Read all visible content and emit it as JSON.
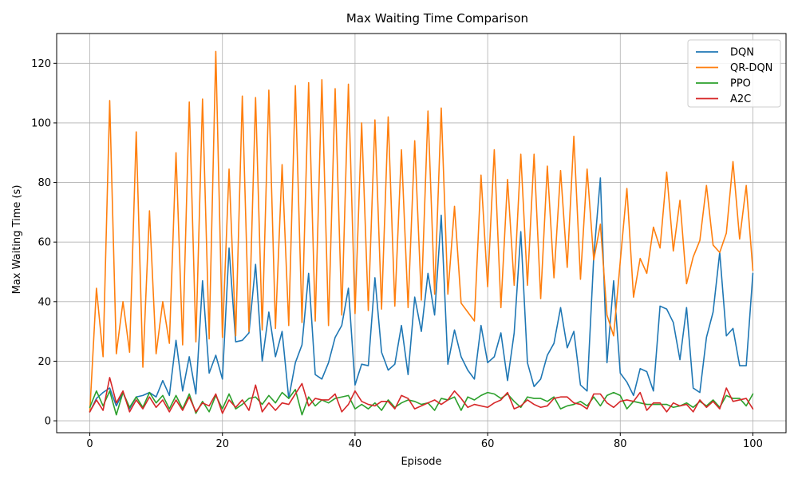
{
  "chart_data": {
    "type": "line",
    "title": "Max Waiting Time Comparison",
    "xlabel": "Episode",
    "ylabel": "Max Waiting Time (s)",
    "xlim": [
      -5,
      105
    ],
    "ylim": [
      -4,
      130
    ],
    "xticks": [
      0,
      20,
      40,
      60,
      80,
      100
    ],
    "yticks": [
      0,
      20,
      40,
      60,
      80,
      100,
      120
    ],
    "grid": true,
    "legend_position": "top-right",
    "x": [
      0,
      1,
      2,
      3,
      4,
      5,
      6,
      7,
      8,
      9,
      10,
      11,
      12,
      13,
      14,
      15,
      16,
      17,
      18,
      19,
      20,
      21,
      22,
      23,
      24,
      25,
      26,
      27,
      28,
      29,
      30,
      31,
      32,
      33,
      34,
      35,
      36,
      37,
      38,
      39,
      40,
      41,
      42,
      43,
      44,
      45,
      46,
      47,
      48,
      49,
      50,
      51,
      52,
      53,
      54,
      55,
      56,
      57,
      58,
      59,
      60,
      61,
      62,
      63,
      64,
      65,
      66,
      67,
      68,
      69,
      70,
      71,
      72,
      73,
      74,
      75,
      76,
      77,
      78,
      79,
      80,
      81,
      82,
      83,
      84,
      85,
      86,
      87,
      88,
      89,
      90,
      91,
      92,
      93,
      94,
      95,
      96,
      97,
      98,
      99,
      100
    ],
    "series": [
      {
        "name": "DQN",
        "color": "#1f77b4",
        "values": [
          3,
          7.5,
          9.5,
          11,
          5,
          9.5,
          4,
          8,
          8.5,
          9.5,
          8,
          13.5,
          8.5,
          27,
          10,
          21.5,
          9,
          47,
          16,
          22,
          14,
          58,
          26.5,
          27,
          29.5,
          52.5,
          20,
          36.5,
          21.5,
          30,
          7.5,
          19.5,
          25.5,
          49.5,
          15.5,
          14,
          19.5,
          28,
          32,
          44.5,
          12,
          19,
          18.5,
          48,
          23,
          17,
          19,
          32,
          15.5,
          41.5,
          30,
          49.5,
          35.5,
          69,
          19,
          30.5,
          21.5,
          17,
          14,
          32,
          19.5,
          21.5,
          29.5,
          13.5,
          29.5,
          63.5,
          19.5,
          11.5,
          14,
          22,
          26,
          38,
          24.5,
          30,
          12,
          10,
          55,
          81.5,
          19.5,
          47,
          16,
          13,
          8.5,
          17.5,
          16.5,
          10,
          38.5,
          37.5,
          33,
          20.5,
          38,
          11,
          9.5,
          28,
          36.5,
          56.5,
          28.5,
          31,
          18.5,
          18.5,
          49.5
        ]
      },
      {
        "name": "QR-DQN",
        "color": "#ff7f0e",
        "values": [
          3,
          44.5,
          21.5,
          107.5,
          22.5,
          40,
          23,
          97,
          18,
          70.5,
          22.5,
          40,
          26,
          90,
          25.5,
          107,
          26.5,
          108,
          27.5,
          124,
          28,
          84.5,
          28.5,
          109,
          30,
          108.5,
          30.5,
          111,
          31,
          86,
          32,
          112.5,
          33,
          113.5,
          33.5,
          114.5,
          32,
          111.5,
          35.5,
          113,
          36,
          100,
          37,
          101,
          37.5,
          102,
          38.5,
          91,
          38,
          94,
          40.5,
          104,
          42.5,
          105,
          42.5,
          72,
          39.5,
          36.5,
          33.5,
          82.5,
          45,
          91,
          38,
          81,
          45.5,
          89.5,
          45.5,
          89.5,
          41,
          85.5,
          48,
          84,
          51.5,
          95.5,
          47.5,
          84.5,
          54,
          66,
          35.5,
          28.5,
          53.5,
          78,
          41.5,
          54.5,
          49.5,
          65,
          58,
          83.5,
          57,
          74,
          46,
          55,
          60.5,
          79,
          59,
          56.5,
          63,
          87,
          61,
          79,
          50.5
        ]
      },
      {
        "name": "PPO",
        "color": "#2ca02c",
        "values": [
          4.5,
          10,
          5,
          10,
          2,
          9.5,
          4.5,
          8,
          4.5,
          9.5,
          6,
          8.5,
          4,
          8.5,
          4,
          9,
          2.5,
          6.5,
          3,
          8.5,
          4,
          9,
          4,
          5.5,
          7.5,
          8,
          5.5,
          8.5,
          6,
          9.5,
          7.5,
          10.5,
          2,
          8,
          5,
          7,
          6,
          7.5,
          8,
          8.5,
          4,
          5.5,
          4,
          6,
          3.5,
          7,
          4.5,
          6,
          7,
          6.5,
          5.5,
          6,
          3.5,
          7.5,
          7,
          8,
          3.5,
          8,
          7,
          8.5,
          9.5,
          9,
          7.5,
          9,
          6.5,
          4.5,
          8,
          7.5,
          7.5,
          6.5,
          8,
          4,
          5,
          5.5,
          6.5,
          5,
          8,
          5,
          8.5,
          9.5,
          8.5,
          4,
          6.5,
          6,
          5.5,
          5.5,
          5.5,
          5.5,
          4.5,
          5,
          6,
          4.5,
          6.5,
          5,
          7,
          4.5,
          8.5,
          7.5,
          7.5,
          5,
          9
        ]
      },
      {
        "name": "A2C",
        "color": "#d62728",
        "values": [
          3,
          7,
          3.5,
          14.5,
          6,
          10,
          3,
          7,
          4,
          8,
          4.5,
          7,
          3,
          7,
          3.5,
          8,
          3,
          6,
          5,
          9,
          2.5,
          7,
          4.5,
          7,
          3.5,
          12,
          3,
          6,
          3.5,
          6,
          5.5,
          9,
          12.5,
          5,
          7.5,
          7,
          7,
          9,
          3,
          5.5,
          10,
          6.5,
          5.5,
          5,
          6.5,
          6.5,
          4,
          8.5,
          7.5,
          4,
          5,
          6,
          7,
          5.5,
          7,
          10,
          7.5,
          4.5,
          5.5,
          5,
          4.5,
          6,
          7,
          9.5,
          4,
          5,
          7,
          5.5,
          4.5,
          5,
          7.5,
          8,
          8,
          6,
          5.5,
          4,
          9,
          9,
          6,
          4.5,
          6.5,
          7,
          6.5,
          9.5,
          3.5,
          6,
          6,
          3,
          6,
          5,
          5.5,
          3,
          7,
          4.5,
          6.5,
          4,
          11,
          6.5,
          7,
          7.5,
          4
        ]
      }
    ]
  }
}
